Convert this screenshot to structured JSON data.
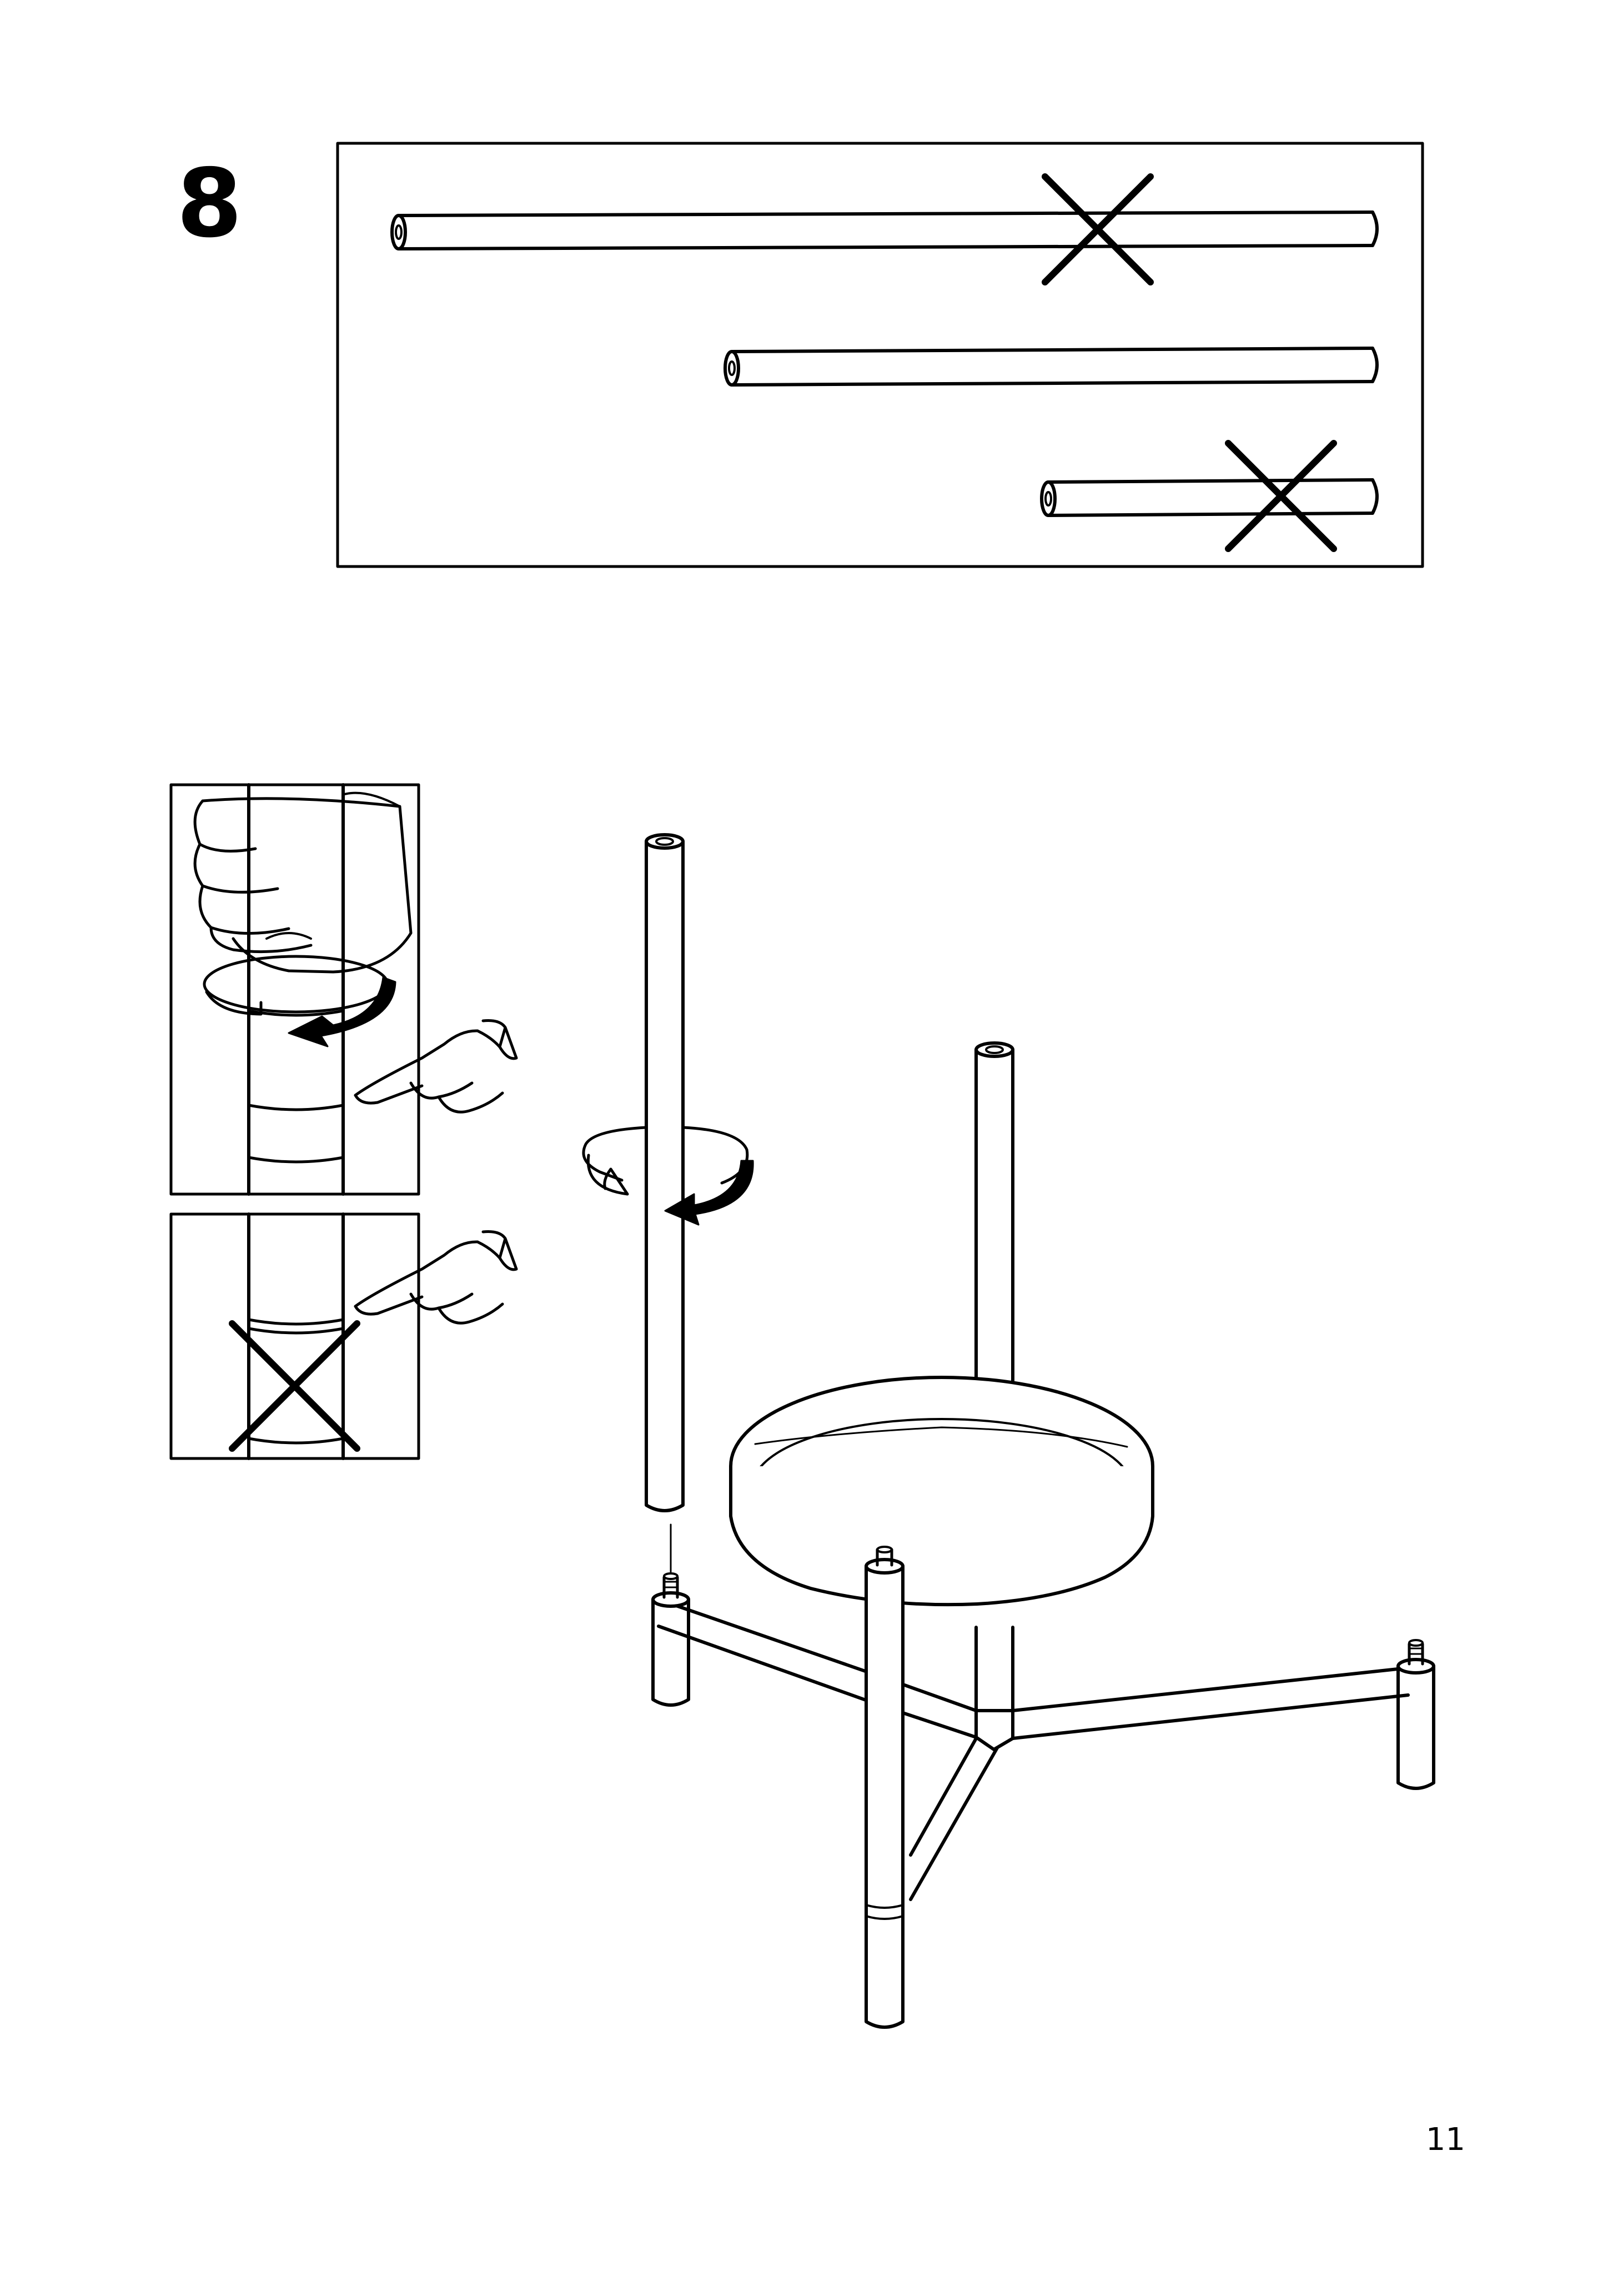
{
  "step": {
    "number": "8"
  },
  "footer": {
    "page_number": "11"
  },
  "icons": {
    "rod_selection": "rod-selection-panel",
    "incorrect": "cross-mark-icon",
    "rotate": "rotate-clockwise-arrow-icon",
    "hand_pointing": "pointing-hand-icon",
    "hand_grip": "gripping-hand-icon"
  },
  "colors": {
    "ink": "#000000",
    "paper": "#ffffff"
  }
}
